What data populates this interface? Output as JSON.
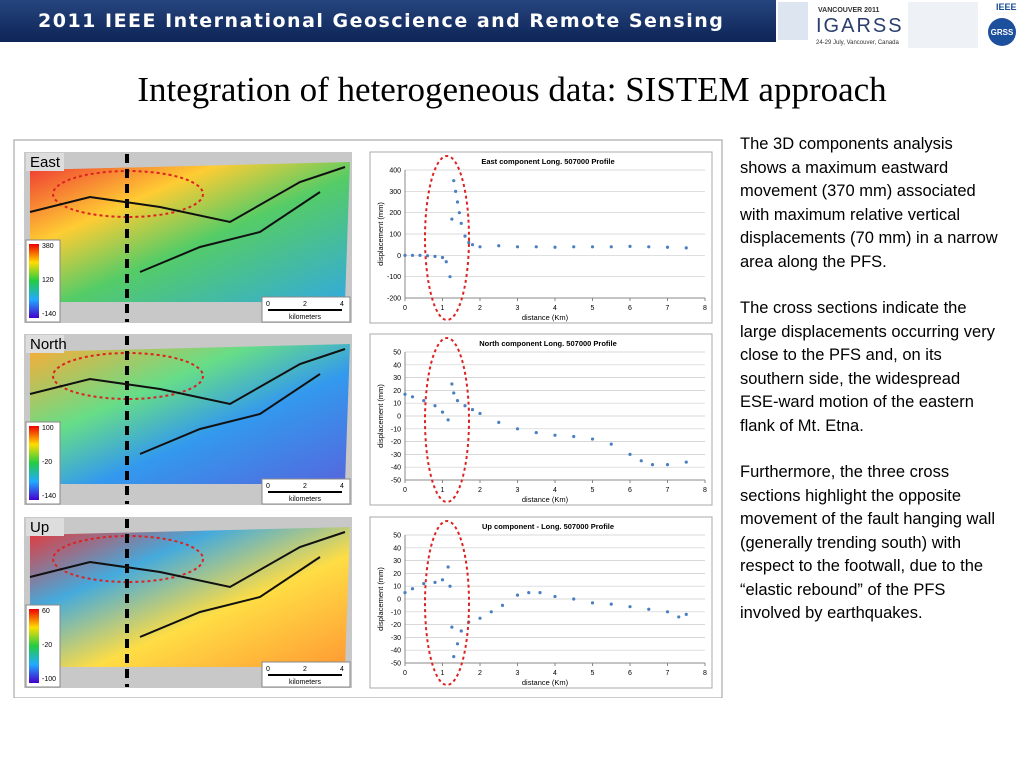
{
  "header": {
    "banner": "2011 IEEE International Geoscience and Remote Sensing Symposium",
    "logo_top": "VANCOUVER 2011",
    "logo_main": "IGARSS",
    "logo_sub": "24-29 July, Vancouver, Canada",
    "ieee": "IEEE",
    "grss": "GRSS"
  },
  "title": "Integration of heterogeneous data: SISTEM approach",
  "maps": [
    {
      "label": "East",
      "colorbar": [
        "380",
        "120",
        "-140"
      ]
    },
    {
      "label": "North",
      "colorbar": [
        "100",
        "-20",
        "-140"
      ]
    },
    {
      "label": "Up",
      "colorbar": [
        "60",
        "-20",
        "-100"
      ]
    }
  ],
  "scale": {
    "ticks": [
      "0",
      "2",
      "4"
    ],
    "unit": "kilometers"
  },
  "chart_data": [
    {
      "type": "scatter",
      "title": "East component Long. 507000 Profile",
      "ylabel": "displacement (mm)",
      "xlabel": "distance (Km)",
      "color": "#4a7fc0",
      "x": [
        0,
        0.2,
        0.4,
        0.6,
        0.8,
        1.0,
        1.1,
        1.2,
        1.25,
        1.3,
        1.35,
        1.4,
        1.45,
        1.5,
        1.6,
        1.7,
        1.8,
        2.0,
        2.5,
        3,
        3.5,
        4,
        4.5,
        5,
        5.5,
        6,
        6.5,
        7,
        7.5
      ],
      "values": [
        0,
        0,
        0,
        -2,
        -5,
        -10,
        -30,
        -100,
        170,
        350,
        300,
        250,
        200,
        150,
        90,
        60,
        50,
        40,
        45,
        40,
        40,
        38,
        40,
        40,
        40,
        42,
        40,
        38,
        35
      ],
      "xlim": [
        0,
        8
      ],
      "xticks": [
        0,
        1,
        2,
        3,
        4,
        5,
        6,
        7,
        8
      ],
      "ylim": [
        -200,
        400
      ],
      "yticks": [
        -200,
        -100,
        0,
        100,
        200,
        300,
        400
      ]
    },
    {
      "type": "scatter",
      "title": "North component Long. 507000 Profile",
      "ylabel": "displacement (mm)",
      "xlabel": "distance (Km)",
      "color": "#4a7fc0",
      "x": [
        0,
        0.2,
        0.5,
        0.8,
        1.0,
        1.15,
        1.25,
        1.3,
        1.4,
        1.6,
        1.8,
        2.0,
        2.5,
        3,
        3.5,
        4,
        4.5,
        5,
        5.5,
        6,
        6.3,
        6.6,
        7,
        7.5
      ],
      "values": [
        17,
        15,
        12,
        8,
        3,
        -3,
        25,
        18,
        12,
        8,
        5,
        2,
        -5,
        -10,
        -13,
        -15,
        -16,
        -18,
        -22,
        -30,
        -35,
        -38,
        -38,
        -36
      ],
      "xlim": [
        0,
        8
      ],
      "xticks": [
        0,
        1,
        2,
        3,
        4,
        5,
        6,
        7,
        8
      ],
      "ylim": [
        -50,
        50
      ],
      "yticks": [
        -50,
        -40,
        -30,
        -20,
        -10,
        0,
        10,
        20,
        30,
        40,
        50
      ]
    },
    {
      "type": "scatter",
      "title": "Up component - Long. 507000 Profile",
      "ylabel": "displacement (mm)",
      "xlabel": "distance (Km)",
      "color": "#4a7fc0",
      "x": [
        0,
        0.2,
        0.5,
        0.8,
        1.0,
        1.15,
        1.2,
        1.25,
        1.3,
        1.4,
        1.5,
        1.7,
        2.0,
        2.3,
        2.6,
        3,
        3.3,
        3.6,
        4,
        4.5,
        5,
        5.5,
        6,
        6.5,
        7,
        7.3,
        7.5
      ],
      "values": [
        5,
        8,
        12,
        13,
        15,
        25,
        10,
        -22,
        -45,
        -35,
        -25,
        -18,
        -15,
        -10,
        -5,
        3,
        5,
        5,
        2,
        0,
        -3,
        -4,
        -6,
        -8,
        -10,
        -14,
        -12
      ],
      "xlim": [
        0,
        8
      ],
      "xticks": [
        0,
        1,
        2,
        3,
        4,
        5,
        6,
        7,
        8
      ],
      "ylim": [
        -50,
        50
      ],
      "yticks": [
        -50,
        -40,
        -30,
        -20,
        -10,
        0,
        10,
        20,
        30,
        40,
        50
      ]
    }
  ],
  "text": [
    "The 3D components analysis shows a maximum eastward movement (370 mm) associated with maximum relative vertical displacements (70 mm) in a narrow area along the PFS.",
    "The cross sections indicate the large displacements occurring very close to the PFS and, on its southern side, the widespread ESE-ward motion of the eastern flank of Mt. Etna.",
    "Furthermore, the three cross sections highlight the opposite movement of the fault hanging wall (generally trending south) with respect to the footwall, due to the “elastic rebound” of the PFS involved by earthquakes."
  ]
}
